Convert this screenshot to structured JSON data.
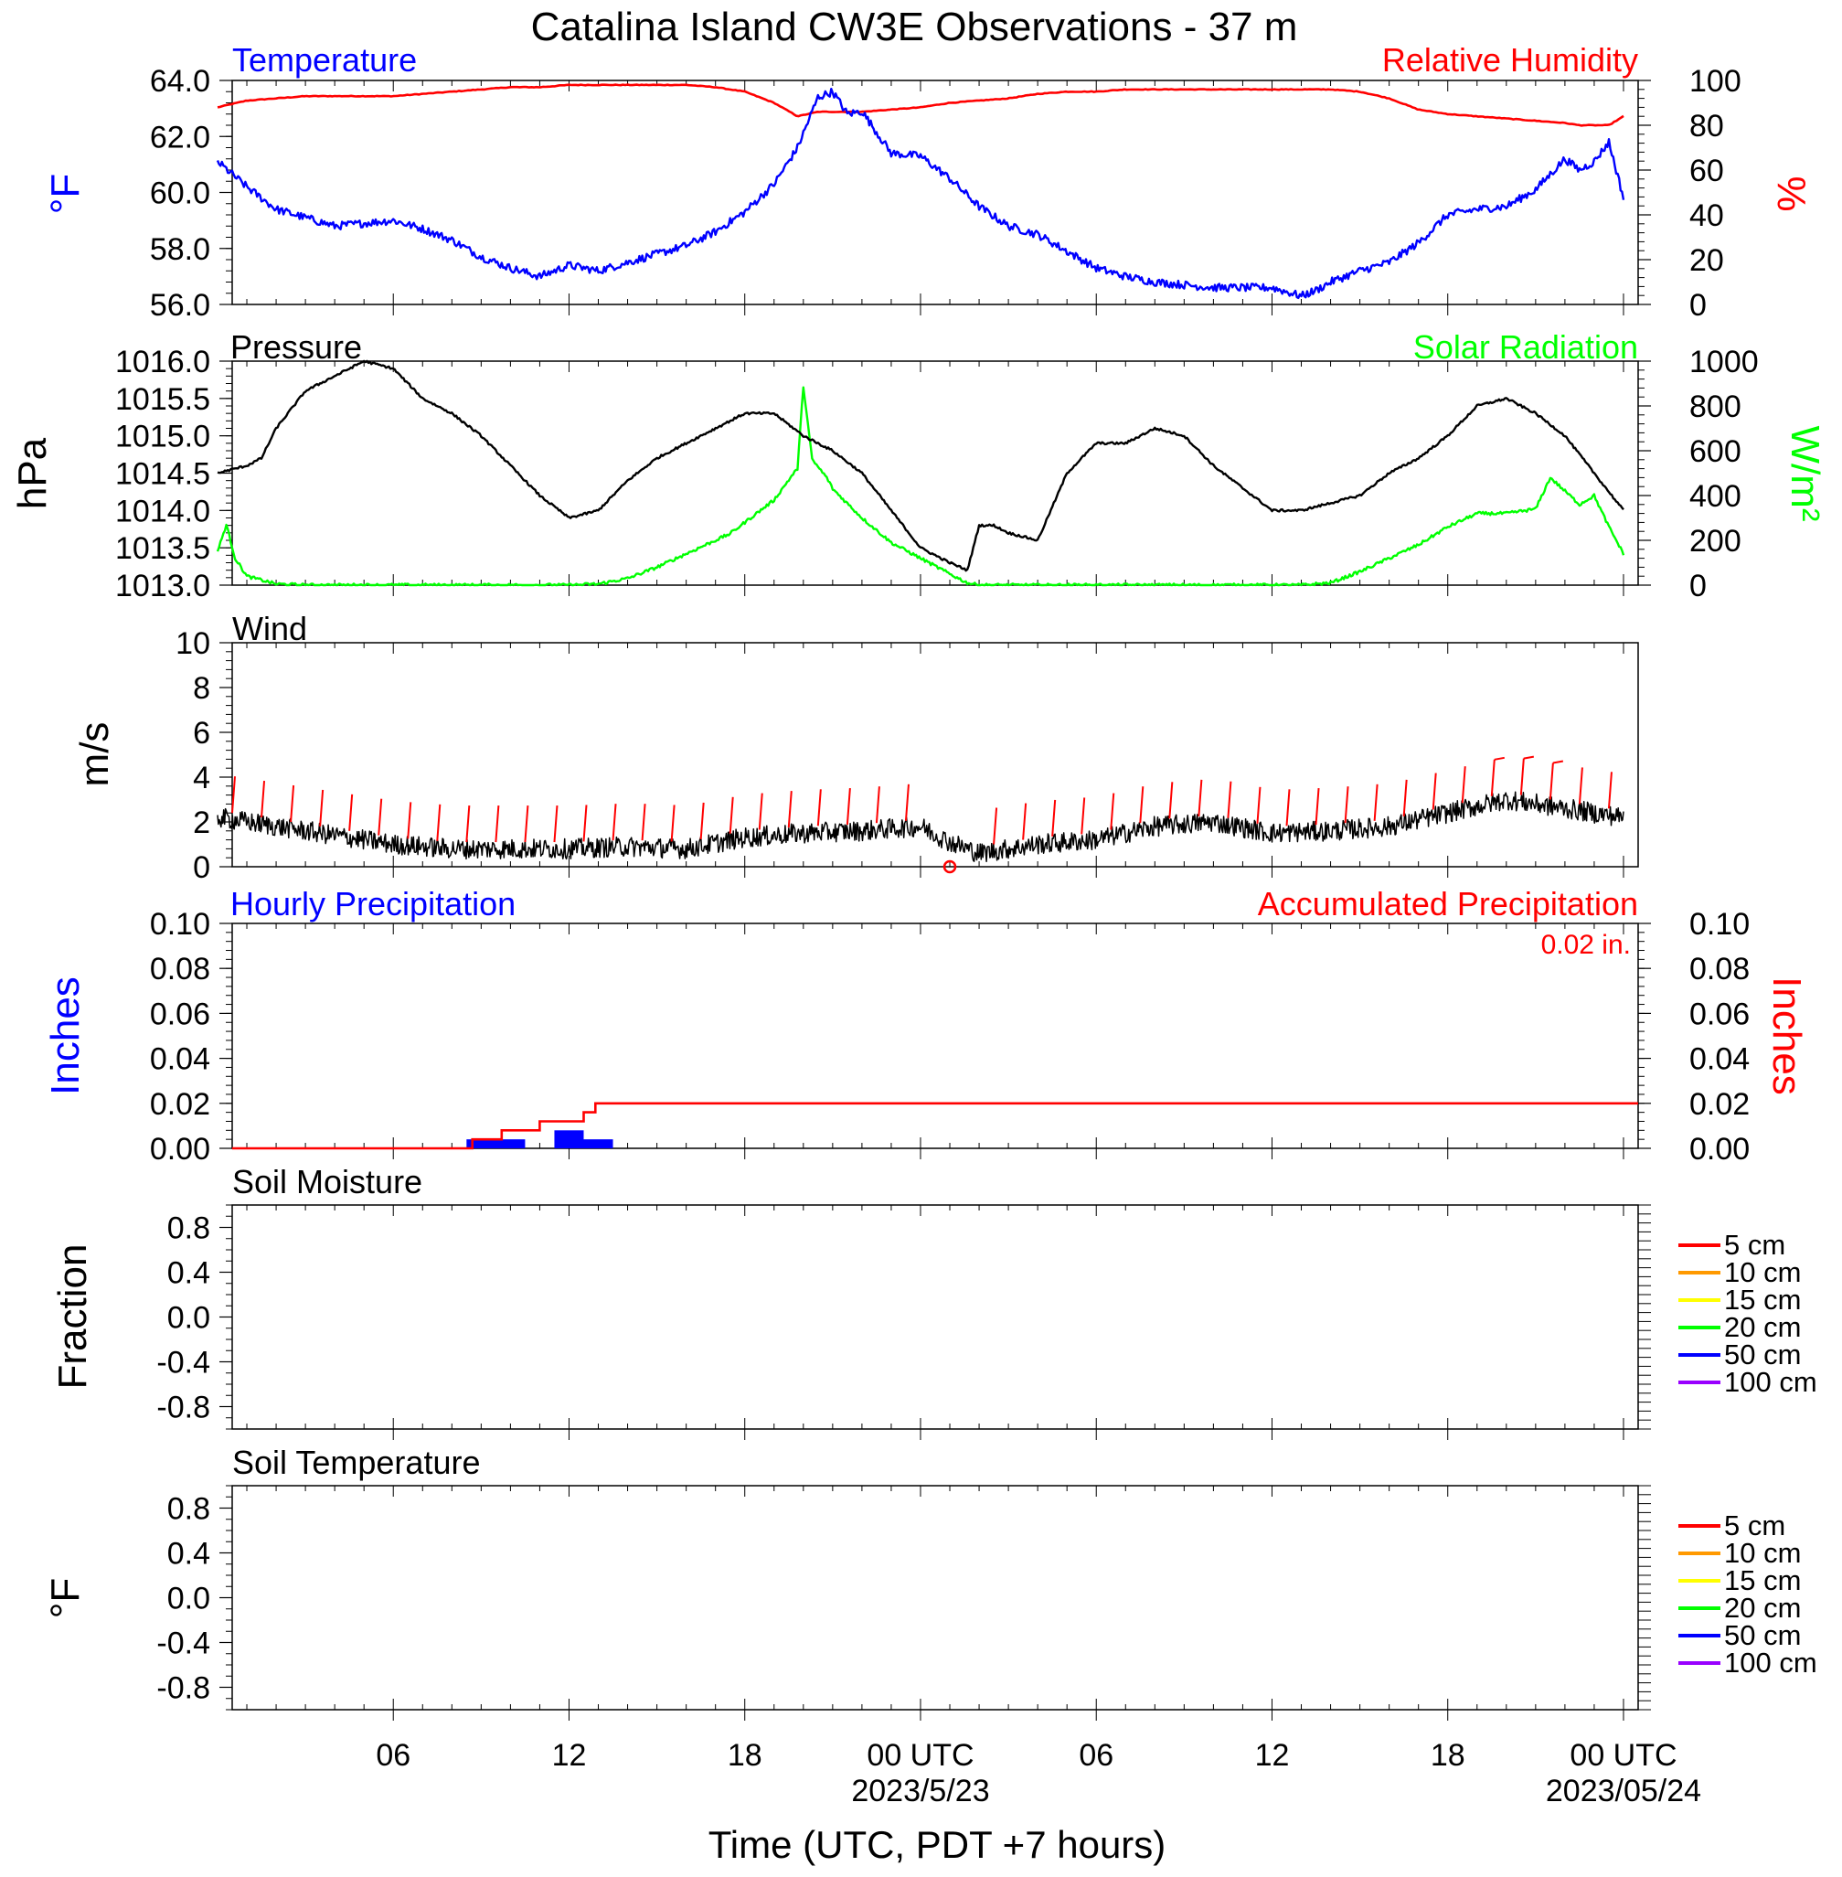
{
  "title": "Catalina Island CW3E Observations - 37 m",
  "x_axis": {
    "label": "Time (UTC, PDT +7 hours)",
    "ticks": [
      {
        "hour": 6,
        "label": "06"
      },
      {
        "hour": 12,
        "label": "12"
      },
      {
        "hour": 18,
        "label": "18"
      },
      {
        "hour": 24,
        "label": "00 UTC",
        "sublabel": "2023/5/23"
      },
      {
        "hour": 30,
        "label": "06"
      },
      {
        "hour": 36,
        "label": "12"
      },
      {
        "hour": 42,
        "label": "18"
      },
      {
        "hour": 48,
        "label": "00 UTC",
        "sublabel": "2023/05/24"
      }
    ]
  },
  "chart_data": [
    {
      "type": "line",
      "panel": "temperature_humidity",
      "left_title": "Temperature",
      "right_title": "Relative Humidity",
      "ylabel_left": "°F",
      "ylabel_right": "%",
      "ylim_left": [
        56,
        64
      ],
      "ylim_right": [
        0,
        100
      ],
      "yticks_left": [
        "56.0",
        "58.0",
        "60.0",
        "62.0",
        "64.0"
      ],
      "yticks_right": [
        "0",
        "20",
        "40",
        "60",
        "80",
        "100"
      ],
      "x_hours": [
        0,
        1,
        2,
        3,
        4,
        5,
        6,
        7,
        8,
        9,
        10,
        11,
        12,
        13,
        14,
        15,
        16,
        17,
        18,
        19,
        19.8,
        20.5,
        21,
        21.5,
        22,
        23,
        24,
        25,
        26,
        27,
        28,
        29,
        30,
        31,
        32,
        33,
        34,
        35,
        36,
        37,
        37.5,
        38,
        39,
        40,
        41,
        42,
        43,
        44,
        45,
        46,
        46.5,
        47,
        47.5,
        48
      ],
      "series": [
        {
          "name": "Temperature",
          "color": "#0000ff",
          "axis": "left",
          "values": [
            61.1,
            60.2,
            59.4,
            59.1,
            58.8,
            58.9,
            59.0,
            58.7,
            58.3,
            57.7,
            57.3,
            57.0,
            57.4,
            57.2,
            57.5,
            57.8,
            58.1,
            58.6,
            59.3,
            60.3,
            61.6,
            63.4,
            63.6,
            62.8,
            62.9,
            61.4,
            61.3,
            60.5,
            59.5,
            58.8,
            58.5,
            57.9,
            57.3,
            57.0,
            56.8,
            56.7,
            56.6,
            56.6,
            56.6,
            56.3,
            56.5,
            56.8,
            57.2,
            57.5,
            58.2,
            59.2,
            59.4,
            59.5,
            60.1,
            61.2,
            60.8,
            61.1,
            61.8,
            59.8
          ]
        },
        {
          "name": "Relative Humidity",
          "color": "#ff0000",
          "axis": "right",
          "values": [
            88,
            91,
            92,
            93,
            93,
            93,
            93,
            94,
            95,
            96,
            97,
            97,
            98,
            98,
            98,
            98,
            98,
            97,
            95,
            90,
            84,
            86,
            86,
            86,
            86,
            87,
            88,
            90,
            91,
            92,
            94,
            95,
            95,
            96,
            96,
            96,
            96,
            96,
            96,
            96,
            96,
            96,
            95,
            92,
            87,
            85,
            84,
            83,
            82,
            81,
            80,
            80,
            80,
            84
          ]
        }
      ]
    },
    {
      "type": "line",
      "panel": "pressure_solar",
      "left_title": "Pressure",
      "right_title": "Solar Radiation",
      "ylabel_left": "hPa",
      "ylabel_right": "W/m²",
      "ylim_left": [
        1013,
        1016
      ],
      "ylim_right": [
        0,
        1000
      ],
      "yticks_left": [
        "1013.0",
        "1013.5",
        "1014.0",
        "1014.5",
        "1015.0",
        "1015.5",
        "1016.0"
      ],
      "yticks_right": [
        "0",
        "200",
        "400",
        "600",
        "800",
        "1000"
      ],
      "series": [
        {
          "name": "Pressure",
          "color": "#000000",
          "axis": "left",
          "x_hours": [
            0,
            1,
            1.5,
            2,
            3,
            4,
            5,
            6,
            7,
            8,
            9,
            10,
            11,
            12,
            13,
            14,
            15,
            16,
            17,
            18,
            19,
            20,
            21,
            22,
            23,
            24,
            25,
            25.6,
            25.8,
            26,
            26.5,
            27,
            28,
            29,
            30,
            31,
            32,
            33,
            34,
            35,
            36,
            37,
            38,
            39,
            40,
            41,
            42,
            43,
            44,
            45,
            46,
            47,
            48
          ],
          "values": [
            1014.5,
            1014.6,
            1014.7,
            1015.1,
            1015.6,
            1015.8,
            1016.0,
            1015.9,
            1015.5,
            1015.3,
            1015.0,
            1014.6,
            1014.2,
            1013.9,
            1014.0,
            1014.4,
            1014.7,
            1014.9,
            1015.1,
            1015.3,
            1015.3,
            1015.0,
            1014.8,
            1014.5,
            1014.0,
            1013.5,
            1013.3,
            1013.2,
            1013.5,
            1013.8,
            1013.8,
            1013.7,
            1013.6,
            1014.5,
            1014.9,
            1014.9,
            1015.1,
            1015.0,
            1014.6,
            1014.3,
            1014.0,
            1014.0,
            1014.1,
            1014.2,
            1014.5,
            1014.7,
            1015.0,
            1015.4,
            1015.5,
            1015.3,
            1015.0,
            1014.5,
            1014.0
          ]
        },
        {
          "name": "Solar Radiation",
          "color": "#00ff00",
          "axis": "right",
          "x_hours": [
            0,
            0.3,
            0.6,
            1,
            2,
            3,
            5,
            8,
            11,
            12,
            13,
            14,
            15,
            16,
            17,
            17.5,
            18,
            19,
            19.5,
            19.8,
            20,
            20.3,
            20.8,
            21,
            22,
            23,
            24,
            25,
            25.6,
            26,
            30,
            34,
            36,
            37,
            38,
            39,
            40,
            41,
            42,
            43,
            44,
            45,
            45.5,
            46,
            46.5,
            47,
            47.5,
            48
          ],
          "values": [
            150,
            270,
            120,
            40,
            5,
            0,
            0,
            0,
            0,
            0,
            5,
            30,
            80,
            140,
            200,
            230,
            280,
            380,
            470,
            520,
            890,
            560,
            480,
            430,
            300,
            190,
            120,
            50,
            10,
            0,
            0,
            0,
            0,
            0,
            10,
            60,
            120,
            180,
            260,
            320,
            320,
            340,
            480,
            420,
            360,
            400,
            260,
            140
          ]
        }
      ]
    },
    {
      "type": "line",
      "panel": "wind",
      "left_title": "Wind",
      "ylabel_left": "m/s",
      "ylim": [
        0,
        10
      ],
      "yticks": [
        "0",
        "2",
        "4",
        "6",
        "8",
        "10"
      ],
      "series": [
        {
          "name": "Wind",
          "color": "#000000",
          "x_hours": [
            0,
            2,
            4,
            6,
            8,
            10,
            12,
            14,
            16,
            18,
            20,
            22,
            24,
            25,
            26,
            28,
            30,
            32,
            34,
            36,
            38,
            40,
            42,
            44,
            46,
            48
          ],
          "values": [
            2.2,
            1.8,
            1.4,
            1.0,
            0.8,
            0.8,
            0.8,
            0.9,
            0.8,
            1.3,
            1.5,
            1.6,
            1.8,
            1.1,
            0.6,
            1.0,
            1.2,
            1.8,
            2.0,
            1.5,
            1.6,
            1.8,
            2.4,
            3.0,
            2.6,
            2.2
          ]
        }
      ],
      "barb_color": "#ff0000",
      "calm_marker_hour": 25
    },
    {
      "type": "bar",
      "panel": "precipitation",
      "left_title": "Hourly Precipitation",
      "right_title": "Accumulated Precipitation",
      "total_label": "0.02 in.",
      "ylabel_left": "Inches",
      "ylabel_right": "Inches",
      "ylim": [
        0,
        0.1
      ],
      "yticks": [
        "0.00",
        "0.02",
        "0.04",
        "0.06",
        "0.08",
        "0.10"
      ],
      "series": [
        {
          "name": "Hourly Precipitation",
          "color": "#0000ff",
          "type": "bar",
          "bars": [
            {
              "start": 8,
              "end": 10,
              "value": 0.004
            },
            {
              "start": 11,
              "end": 12,
              "value": 0.008
            },
            {
              "start": 12,
              "end": 13,
              "value": 0.004
            }
          ]
        },
        {
          "name": "Accumulated Precipitation",
          "color": "#ff0000",
          "type": "step",
          "x_hours": [
            0,
            8,
            8.2,
            9.2,
            10.5,
            11,
            12,
            12.4,
            13,
            48
          ],
          "values": [
            0,
            0,
            0.004,
            0.008,
            0.012,
            0.012,
            0.016,
            0.02,
            0.02,
            0.02
          ]
        }
      ]
    },
    {
      "type": "line",
      "panel": "soil_moisture",
      "left_title": "Soil Moisture",
      "ylabel_left": "Fraction",
      "ylim": [
        -1,
        1
      ],
      "yticks": [
        "-0.8",
        "-0.4",
        "0.0",
        "0.4",
        "0.8"
      ],
      "legend": [
        {
          "label": "5 cm",
          "color": "#ff0000"
        },
        {
          "label": "10 cm",
          "color": "#ff9900"
        },
        {
          "label": "15 cm",
          "color": "#ffff00"
        },
        {
          "label": "20 cm",
          "color": "#00ff00"
        },
        {
          "label": "50 cm",
          "color": "#0000ff"
        },
        {
          "label": "100 cm",
          "color": "#9900ff"
        }
      ],
      "series": []
    },
    {
      "type": "line",
      "panel": "soil_temperature",
      "left_title": "Soil Temperature",
      "ylabel_left": "°F",
      "ylim": [
        -1,
        1
      ],
      "yticks": [
        "-0.8",
        "-0.4",
        "0.0",
        "0.4",
        "0.8"
      ],
      "legend": [
        {
          "label": "5 cm",
          "color": "#ff0000"
        },
        {
          "label": "10 cm",
          "color": "#ff9900"
        },
        {
          "label": "15 cm",
          "color": "#ffff00"
        },
        {
          "label": "20 cm",
          "color": "#00ff00"
        },
        {
          "label": "50 cm",
          "color": "#0000ff"
        },
        {
          "label": "100 cm",
          "color": "#9900ff"
        }
      ],
      "series": []
    }
  ]
}
